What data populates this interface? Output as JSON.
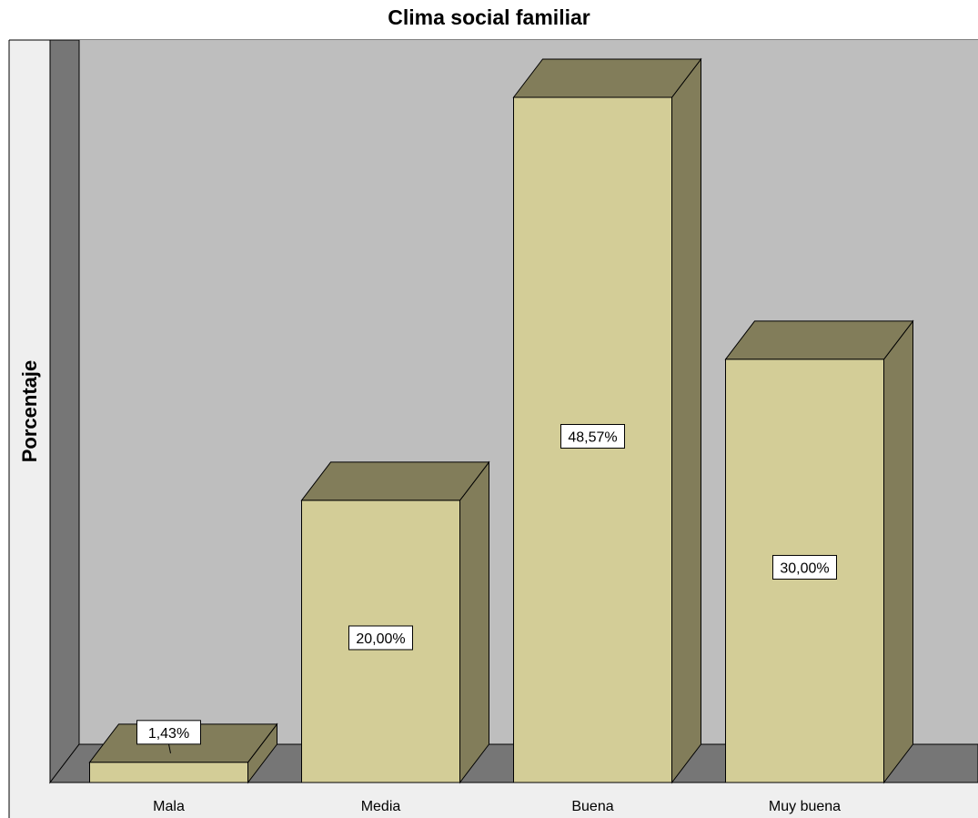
{
  "chart_data": {
    "type": "bar",
    "title": "Clima social familiar",
    "xlabel": "",
    "ylabel": "Porcentaje",
    "categories": [
      "Mala",
      "Media",
      "Buena",
      "Muy buena"
    ],
    "values": [
      1.43,
      20.0,
      48.57,
      30.0
    ],
    "data_labels": [
      "1,43%",
      "20,00%",
      "48,57%",
      "30,00%"
    ],
    "ylim": [
      0,
      50
    ],
    "grid": false,
    "style": "3d",
    "colors": {
      "bar_front": "#D3CD97",
      "bar_side": "#827D5A",
      "bar_top": "#827D5A",
      "wall": "#BEBEBE",
      "wall_edge": "#767676",
      "outer_background": "#EFEFEF"
    }
  }
}
